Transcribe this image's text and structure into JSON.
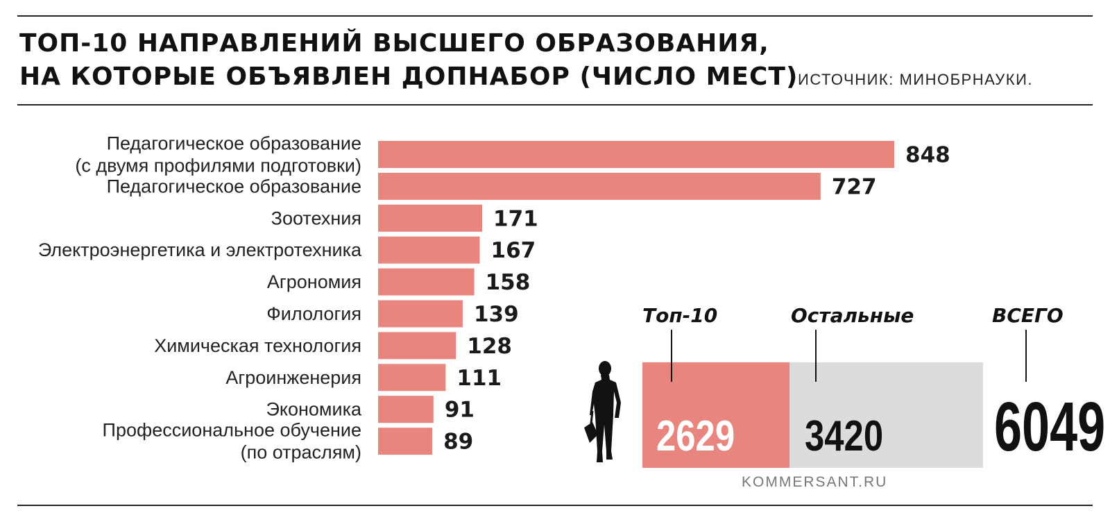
{
  "header": {
    "title_line1": "ТОП-10 НАПРАВЛЕНИЙ ВЫСШЕГО ОБРАЗОВАНИЯ,",
    "title_line2": "НА КОТОРЫЕ ОБЪЯВЛЕН ДОПНАБОР (ЧИСЛО МЕСТ)",
    "source": "ИСТОЧНИК: МИНОБРНАУКИ."
  },
  "colors": {
    "bar": "#e8857f",
    "rest_box": "#dcdcdc",
    "text": "#1a1a1a"
  },
  "chart_data": [
    {
      "type": "bar",
      "orientation": "horizontal",
      "title": "ТОП-10 НАПРАВЛЕНИЙ ВЫСШЕГО ОБРАЗОВАНИЯ, НА КОТОРЫЕ ОБЪЯВЛЕН ДОПНАБОР (ЧИСЛО МЕСТ)",
      "categories": [
        [
          "Педагогическое образование",
          "(с двумя профилями подготовки)"
        ],
        [
          "Педагогическое образование"
        ],
        [
          "Зоотехния"
        ],
        [
          "Электроэнергетика и электротехника"
        ],
        [
          "Агрономия"
        ],
        [
          "Филология"
        ],
        [
          "Химическая технология"
        ],
        [
          "Агроинженерия"
        ],
        [
          "Экономика"
        ],
        [
          "Профессиональное обучение",
          "(по отраслям)"
        ]
      ],
      "values": [
        848,
        727,
        171,
        167,
        158,
        139,
        128,
        111,
        91,
        89
      ],
      "grid": false,
      "legend": "none"
    },
    {
      "type": "bar",
      "orientation": "stacked-horizontal",
      "categories": [
        "Топ-10",
        "Остальные"
      ],
      "values": [
        2629,
        3420
      ],
      "total_label": "ВСЕГО",
      "total": 6049
    }
  ],
  "summary": {
    "top10_label": "Топ-10",
    "rest_label": "Остальные",
    "total_label": "ВСЕГО",
    "top10_value": "2629",
    "rest_value": "3420",
    "total_value": "6049"
  },
  "icons": {
    "person": "person-with-bag-icon"
  },
  "footer": {
    "credit": "KOMMERSANT.RU"
  }
}
